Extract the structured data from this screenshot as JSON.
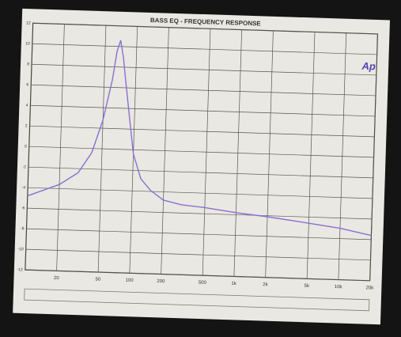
{
  "chart_data": {
    "type": "line",
    "title": "BASS EQ - FREQUENCY RESPONSE",
    "logo": "Ap",
    "x": [
      10,
      20,
      30,
      40,
      50,
      60,
      65,
      70,
      75,
      80,
      90,
      100,
      120,
      150,
      200,
      300,
      500,
      1000,
      2000,
      5000,
      10000,
      20000
    ],
    "series": [
      {
        "color": "#8a6fd0",
        "values": [
          -4.8,
          -3.6,
          -2.4,
          -0.4,
          2.8,
          6.8,
          9.5,
          10.6,
          9.0,
          6.8,
          3.0,
          -0.4,
          -2.8,
          -3.9,
          -4.8,
          -5.2,
          -5.4,
          -5.8,
          -6.1,
          -6.6,
          -7.0,
          -7.6
        ]
      }
    ],
    "xlim": [
      10,
      20000
    ],
    "xscale": "log",
    "xticks": [
      20,
      50,
      100,
      200,
      500,
      {
        "value": 1000,
        "label": "1k"
      },
      {
        "value": 2000,
        "label": "2k"
      },
      {
        "value": 5000,
        "label": "5k"
      },
      {
        "value": 10000,
        "label": "10k"
      },
      {
        "value": 20000,
        "label": "20k"
      }
    ],
    "ylim": [
      -12,
      12
    ],
    "yticks": [
      -12,
      -10,
      -8,
      -6,
      -4,
      -2,
      0,
      2,
      4,
      6,
      8,
      10,
      12
    ],
    "grid": true
  }
}
